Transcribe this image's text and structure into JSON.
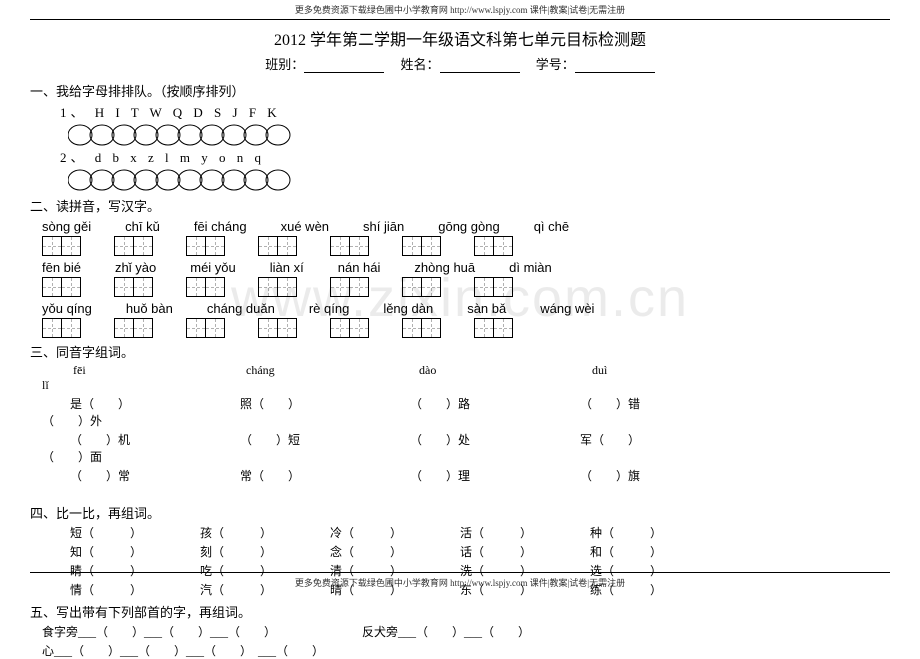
{
  "header_text": "更多免费资源下载绿色圃中小学教育网 http://www.lspjy.com 课件|教案|试卷|无需注册",
  "title": "2012 学年第二学期一年级语文科第七单元目标检测题",
  "info": {
    "class": "班别：",
    "name": "姓名：",
    "num": "学号："
  },
  "s1": {
    "title": "一、我给字母排排队。（按顺序排列）",
    "row1_label": "1、",
    "row1_letters": "H   I   T   W   Q   D   S   J   F   K",
    "row2_label": "2、",
    "row2_letters": "d   b   x   z   l   m   y   o   n   q"
  },
  "s2": {
    "title": "二、读拼音，写汉字。",
    "rows": [
      [
        "sòng gěi",
        "chī kǔ",
        "fēi cháng",
        "xué wèn",
        "shí jiān",
        "gōng gòng",
        "qì chē"
      ],
      [
        "fēn bié",
        "zhǐ yào",
        "méi yǒu",
        "liàn xí",
        "nán hái",
        "zhòng huā",
        "dì miàn"
      ],
      [
        "yǒu qíng",
        "huǒ bàn",
        "cháng duǎn",
        "rè qíng",
        "lěng dàn",
        "sàn bǎ",
        "wáng wèi"
      ]
    ]
  },
  "s3": {
    "title": "三、同音字组词。",
    "heads": [
      "fēi",
      "cháng",
      "dào",
      "duì",
      "lǐ"
    ],
    "line1": [
      "是（　　）",
      "照（　　）",
      "（　　）路",
      "（　　）错",
      "（　　）外"
    ],
    "line2": [
      "（　　）机",
      "（　　）短",
      "（　　）处",
      "军（　　）",
      "（　　）面"
    ],
    "line3": [
      "（　　）常",
      "常（　　）",
      "（　　）理",
      "（　　）旗",
      ""
    ]
  },
  "s4": {
    "title": "四、比一比，再组词。",
    "pairsA": [
      "短（　　　）",
      "孩（　　　）",
      "冷（　　　）",
      "活（　　　）",
      "种（　　　）"
    ],
    "pairsB": [
      "知（　　　）",
      "刻（　　　）",
      "念（　　　）",
      "话（　　　）",
      "和（　　　）"
    ],
    "pairsC": [
      "睛（　　　）",
      "吃（　　　）",
      "清（　　　）",
      "洗（　　　）",
      "选（　　　）"
    ],
    "pairsD": [
      "情（　　　）",
      "汽（　　　）",
      "晴（　　　）",
      "东（　　　）",
      "练（　　　）"
    ]
  },
  "s5": {
    "title": "五、写出带有下列部首的字，再组词。",
    "line1a": "食字旁___（　　）___（　　）___（　　）",
    "line1b": "反犬旁___（　　）___（　　）",
    "line2": "心___（　　）___（　　）___（　　）　___（　　）"
  },
  "watermark": "www.zixin.com.cn",
  "oval_count": 10,
  "styling": {
    "background": "#ffffff",
    "text_color": "#000000",
    "watermark_color": "rgba(0,0,0,0.08)",
    "font_family": "SimSun",
    "title_fontsize": 16,
    "body_fontsize": 12
  }
}
